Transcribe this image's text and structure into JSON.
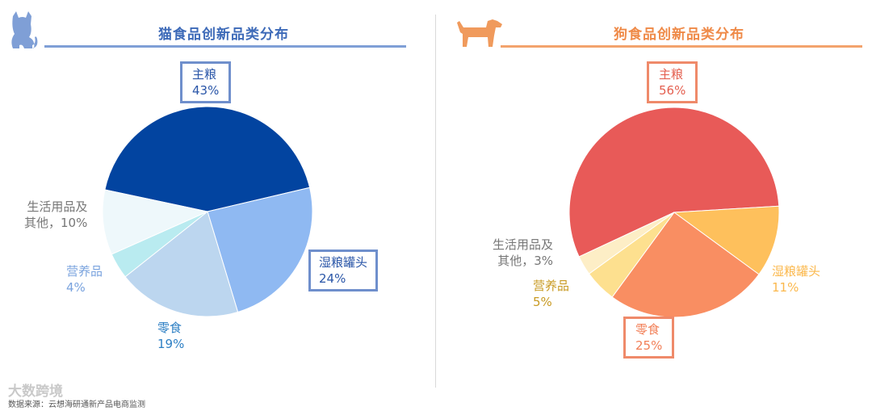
{
  "colors": {
    "cat_title": "#3d6ab8",
    "dog_title": "#ef8a48",
    "cat_box": "#6f8fcc",
    "dog_box": "#ef8a6a"
  },
  "cat": {
    "title": "猫食品创新品类分布",
    "icon": "cat-icon",
    "labels": {
      "staple_name": "主粮",
      "staple_pct": "43%",
      "wet_name": "湿粮罐头",
      "wet_pct": "24%",
      "snack_name": "零食",
      "snack_pct": "19%",
      "nutrition_name": "营养品",
      "nutrition_pct": "4%",
      "other_name": "生活用品及",
      "other_pct": "其他，10%"
    }
  },
  "dog": {
    "title": "狗食品创新品类分布",
    "icon": "dog-icon",
    "labels": {
      "staple_name": "主粮",
      "staple_pct": "56%",
      "wet_name": "湿粮罐头",
      "wet_pct": "11%",
      "snack_name": "零食",
      "snack_pct": "25%",
      "nutrition_name": "营养品",
      "nutrition_pct": "5%",
      "other_name": "生活用品及",
      "other_pct": "其他，3%"
    }
  },
  "footer": {
    "source": "数据来源：云想海研通新产品电商监测",
    "watermark": "大数跨境"
  },
  "chart_data": [
    {
      "type": "pie",
      "title": "猫食品创新品类分布",
      "categories": [
        "主粮",
        "湿粮罐头",
        "零食",
        "营养品",
        "生活用品及其他"
      ],
      "values": [
        43,
        24,
        19,
        4,
        10
      ],
      "colors": [
        "#0244a0",
        "#8fb9f2",
        "#bcd6ef",
        "#b9ebf0",
        "#eef8fb"
      ],
      "unit": "%"
    },
    {
      "type": "pie",
      "title": "狗食品创新品类分布",
      "categories": [
        "主粮",
        "湿粮罐头",
        "零食",
        "营养品",
        "生活用品及其他"
      ],
      "values": [
        56,
        11,
        25,
        5,
        3
      ],
      "colors": [
        "#e85a58",
        "#fec05c",
        "#f98e62",
        "#fde08f",
        "#fdeec6"
      ],
      "unit": "%"
    }
  ]
}
